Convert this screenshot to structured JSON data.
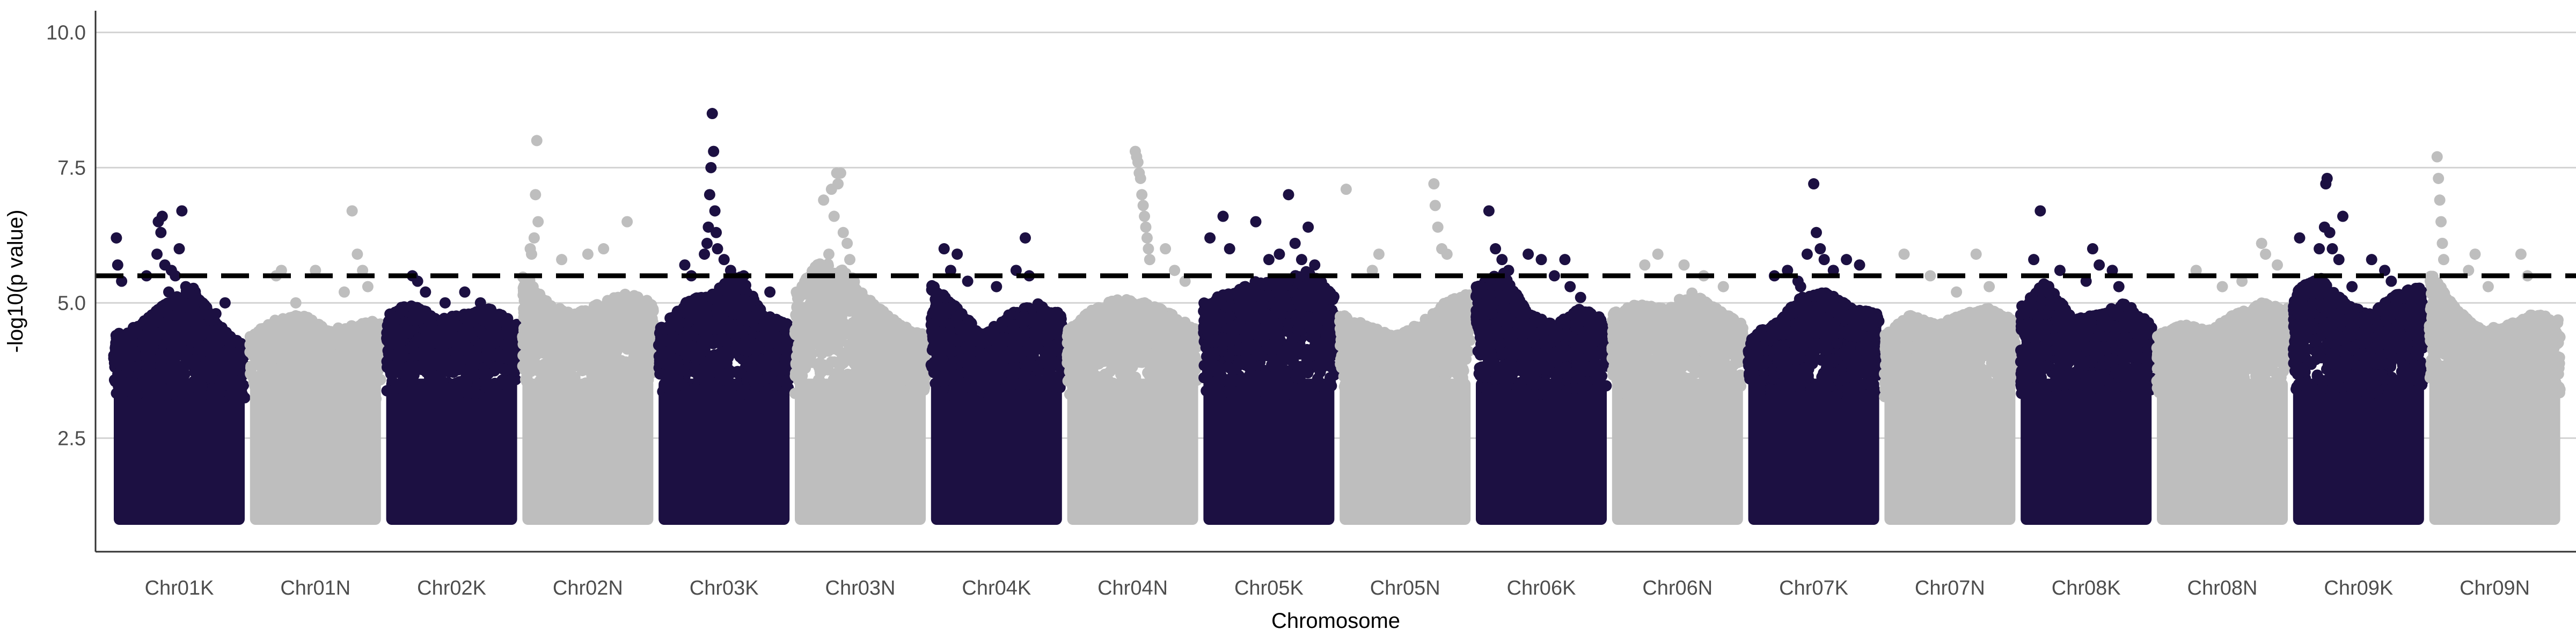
{
  "chart_data": {
    "type": "scatter",
    "title": "",
    "xlabel": "Chromosome",
    "ylabel": "-log10(p value)",
    "ylim": [
      0.4,
      10.4
    ],
    "y_ticks": [
      2.5,
      5.0,
      7.5,
      10.0
    ],
    "y_tick_labels": [
      "2.5",
      "5.0",
      "7.5",
      "10.0"
    ],
    "grid": "horizontal major lines at y ticks",
    "legend": "none",
    "threshold": 5.5,
    "colors": {
      "odd_chromosome": "#1c1042",
      "even_chromosome": "#bebebe",
      "threshold_line": "#000000",
      "grid": "#d3d3d3"
    },
    "point_floor": 1.0,
    "chromosomes": [
      {
        "name": "Chr01K",
        "color": "#1c1042",
        "envelope": [
          4.4,
          4.6,
          5.0,
          5.3,
          4.6,
          4.2
        ],
        "top_points": [
          [
            0.02,
            6.2
          ],
          [
            0.03,
            5.7
          ],
          [
            0.06,
            5.4
          ],
          [
            0.25,
            5.5
          ],
          [
            0.33,
            5.9
          ],
          [
            0.34,
            6.5
          ],
          [
            0.36,
            6.3
          ],
          [
            0.37,
            6.6
          ],
          [
            0.39,
            5.7
          ],
          [
            0.42,
            5.2
          ],
          [
            0.44,
            5.6
          ],
          [
            0.47,
            5.5
          ],
          [
            0.5,
            6.0
          ],
          [
            0.52,
            6.7
          ],
          [
            0.55,
            5.3
          ],
          [
            0.6,
            5.0
          ],
          [
            0.78,
            4.8
          ],
          [
            0.85,
            5.0
          ]
        ]
      },
      {
        "name": "Chr01N",
        "color": "#bebebe",
        "envelope": [
          4.4,
          4.7,
          4.8,
          4.5,
          4.6,
          4.7
        ],
        "top_points": [
          [
            0.2,
            5.5
          ],
          [
            0.24,
            5.6
          ],
          [
            0.35,
            5.0
          ],
          [
            0.5,
            5.6
          ],
          [
            0.72,
            5.2
          ],
          [
            0.78,
            6.7
          ],
          [
            0.82,
            5.9
          ],
          [
            0.86,
            5.6
          ],
          [
            0.9,
            5.3
          ]
        ]
      },
      {
        "name": "Chr02K",
        "color": "#1c1042",
        "envelope": [
          4.8,
          5.0,
          4.7,
          4.8,
          4.9,
          4.6
        ],
        "top_points": [
          [
            0.2,
            5.5
          ],
          [
            0.24,
            5.4
          ],
          [
            0.3,
            5.2
          ],
          [
            0.45,
            5.0
          ],
          [
            0.6,
            5.2
          ],
          [
            0.72,
            5.0
          ]
        ]
      },
      {
        "name": "Chr02N",
        "color": "#bebebe",
        "envelope": [
          5.6,
          5.0,
          4.8,
          5.0,
          5.2,
          5.0
        ],
        "top_points": [
          [
            0.06,
            6.0
          ],
          [
            0.07,
            5.9
          ],
          [
            0.09,
            6.2
          ],
          [
            0.1,
            7.0
          ],
          [
            0.11,
            8.0
          ],
          [
            0.12,
            6.5
          ],
          [
            0.3,
            5.8
          ],
          [
            0.5,
            5.9
          ],
          [
            0.62,
            6.0
          ],
          [
            0.8,
            6.5
          ]
        ]
      },
      {
        "name": "Chr03K",
        "color": "#1c1042",
        "envelope": [
          4.5,
          5.0,
          5.2,
          5.6,
          4.8,
          4.6
        ],
        "top_points": [
          [
            0.2,
            5.7
          ],
          [
            0.25,
            5.5
          ],
          [
            0.35,
            5.9
          ],
          [
            0.37,
            6.1
          ],
          [
            0.38,
            6.4
          ],
          [
            0.39,
            7.0
          ],
          [
            0.4,
            7.5
          ],
          [
            0.41,
            8.5
          ],
          [
            0.42,
            7.8
          ],
          [
            0.43,
            6.7
          ],
          [
            0.44,
            6.3
          ],
          [
            0.45,
            6.0
          ],
          [
            0.5,
            5.8
          ],
          [
            0.55,
            5.6
          ],
          [
            0.65,
            5.5
          ],
          [
            0.85,
            5.2
          ]
        ]
      },
      {
        "name": "Chr03N",
        "color": "#bebebe",
        "envelope": [
          5.2,
          5.8,
          5.6,
          5.0,
          4.6,
          4.4
        ],
        "top_points": [
          [
            0.22,
            6.9
          ],
          [
            0.28,
            7.1
          ],
          [
            0.3,
            6.6
          ],
          [
            0.32,
            7.4
          ],
          [
            0.33,
            7.2
          ],
          [
            0.35,
            7.4
          ],
          [
            0.37,
            6.3
          ],
          [
            0.4,
            6.1
          ],
          [
            0.26,
            5.9
          ],
          [
            0.42,
            5.8
          ]
        ]
      },
      {
        "name": "Chr04K",
        "color": "#1c1042",
        "envelope": [
          5.4,
          4.9,
          4.4,
          4.8,
          5.0,
          4.8
        ],
        "top_points": [
          [
            0.1,
            6.0
          ],
          [
            0.15,
            5.6
          ],
          [
            0.2,
            5.9
          ],
          [
            0.28,
            5.4
          ],
          [
            0.5,
            5.3
          ],
          [
            0.65,
            5.6
          ],
          [
            0.72,
            6.2
          ],
          [
            0.75,
            5.5
          ]
        ]
      },
      {
        "name": "Chr04N",
        "color": "#bebebe",
        "envelope": [
          4.5,
          4.9,
          5.1,
          5.0,
          4.8,
          4.5
        ],
        "top_points": [
          [
            0.52,
            7.8
          ],
          [
            0.53,
            7.7
          ],
          [
            0.54,
            7.6
          ],
          [
            0.55,
            7.4
          ],
          [
            0.56,
            7.3
          ],
          [
            0.57,
            7.0
          ],
          [
            0.58,
            6.8
          ],
          [
            0.59,
            6.6
          ],
          [
            0.6,
            6.4
          ],
          [
            0.61,
            6.2
          ],
          [
            0.62,
            6.0
          ],
          [
            0.63,
            5.8
          ],
          [
            0.75,
            6.0
          ],
          [
            0.82,
            5.6
          ],
          [
            0.9,
            5.4
          ]
        ]
      },
      {
        "name": "Chr05K",
        "color": "#1c1042",
        "envelope": [
          5.0,
          5.2,
          5.4,
          5.4,
          5.6,
          5.2
        ],
        "top_points": [
          [
            0.05,
            6.2
          ],
          [
            0.15,
            6.6
          ],
          [
            0.2,
            6.0
          ],
          [
            0.4,
            6.5
          ],
          [
            0.5,
            5.8
          ],
          [
            0.58,
            5.9
          ],
          [
            0.65,
            7.0
          ],
          [
            0.7,
            6.1
          ],
          [
            0.75,
            5.8
          ],
          [
            0.8,
            6.4
          ],
          [
            0.85,
            5.7
          ]
        ]
      },
      {
        "name": "Chr05N",
        "color": "#bebebe",
        "envelope": [
          4.8,
          4.6,
          4.4,
          4.6,
          5.0,
          5.2
        ],
        "top_points": [
          [
            0.05,
            7.1
          ],
          [
            0.25,
            5.6
          ],
          [
            0.3,
            5.9
          ],
          [
            0.72,
            7.2
          ],
          [
            0.73,
            6.8
          ],
          [
            0.75,
            6.4
          ],
          [
            0.78,
            6.0
          ],
          [
            0.82,
            5.9
          ]
        ]
      },
      {
        "name": "Chr06K",
        "color": "#1c1042",
        "envelope": [
          5.3,
          5.6,
          4.8,
          4.6,
          4.9,
          4.7
        ],
        "top_points": [
          [
            0.1,
            6.7
          ],
          [
            0.15,
            6.0
          ],
          [
            0.2,
            5.8
          ],
          [
            0.25,
            5.6
          ],
          [
            0.4,
            5.9
          ],
          [
            0.5,
            5.8
          ],
          [
            0.6,
            5.5
          ],
          [
            0.68,
            5.8
          ],
          [
            0.72,
            5.3
          ],
          [
            0.8,
            5.1
          ]
        ]
      },
      {
        "name": "Chr06N",
        "color": "#bebebe",
        "envelope": [
          4.8,
          5.0,
          4.9,
          5.2,
          4.9,
          4.6
        ],
        "top_points": [
          [
            0.25,
            5.7
          ],
          [
            0.35,
            5.9
          ],
          [
            0.55,
            5.7
          ],
          [
            0.7,
            5.5
          ],
          [
            0.85,
            5.3
          ]
        ]
      },
      {
        "name": "Chr07K",
        "color": "#1c1042",
        "envelope": [
          4.4,
          4.6,
          5.1,
          5.2,
          4.9,
          4.8
        ],
        "top_points": [
          [
            0.2,
            5.5
          ],
          [
            0.3,
            5.6
          ],
          [
            0.38,
            5.4
          ],
          [
            0.4,
            5.3
          ],
          [
            0.45,
            5.9
          ],
          [
            0.5,
            7.2
          ],
          [
            0.52,
            6.3
          ],
          [
            0.55,
            6.0
          ],
          [
            0.58,
            5.8
          ],
          [
            0.65,
            5.6
          ],
          [
            0.75,
            5.8
          ],
          [
            0.85,
            5.7
          ]
        ]
      },
      {
        "name": "Chr07N",
        "color": "#bebebe",
        "envelope": [
          4.4,
          4.8,
          4.6,
          4.8,
          4.9,
          4.7
        ],
        "top_points": [
          [
            0.15,
            5.9
          ],
          [
            0.35,
            5.5
          ],
          [
            0.55,
            5.2
          ],
          [
            0.7,
            5.9
          ],
          [
            0.8,
            5.3
          ]
        ]
      },
      {
        "name": "Chr08K",
        "color": "#1c1042",
        "envelope": [
          5.0,
          5.4,
          4.7,
          4.8,
          5.0,
          4.6
        ],
        "top_points": [
          [
            0.1,
            5.8
          ],
          [
            0.15,
            6.7
          ],
          [
            0.3,
            5.6
          ],
          [
            0.5,
            5.4
          ],
          [
            0.55,
            6.0
          ],
          [
            0.6,
            5.7
          ],
          [
            0.7,
            5.6
          ],
          [
            0.75,
            5.3
          ]
        ]
      },
      {
        "name": "Chr08N",
        "color": "#bebebe",
        "envelope": [
          4.4,
          4.6,
          4.5,
          4.8,
          5.0,
          4.9
        ],
        "top_points": [
          [
            0.3,
            5.6
          ],
          [
            0.5,
            5.3
          ],
          [
            0.65,
            5.4
          ],
          [
            0.8,
            6.1
          ],
          [
            0.83,
            5.9
          ],
          [
            0.92,
            5.7
          ]
        ]
      },
      {
        "name": "Chr09K",
        "color": "#1c1042",
        "envelope": [
          5.2,
          5.5,
          5.0,
          4.8,
          5.2,
          5.3
        ],
        "top_points": [
          [
            0.05,
            6.2
          ],
          [
            0.2,
            6.0
          ],
          [
            0.24,
            6.4
          ],
          [
            0.25,
            7.2
          ],
          [
            0.26,
            7.3
          ],
          [
            0.28,
            6.3
          ],
          [
            0.3,
            6.0
          ],
          [
            0.35,
            5.8
          ],
          [
            0.38,
            6.6
          ],
          [
            0.45,
            5.3
          ],
          [
            0.6,
            5.8
          ],
          [
            0.7,
            5.6
          ],
          [
            0.75,
            5.4
          ]
        ]
      },
      {
        "name": "Chr09N",
        "color": "#bebebe",
        "envelope": [
          5.6,
          4.9,
          4.5,
          4.6,
          4.8,
          4.7
        ],
        "top_points": [
          [
            0.06,
            7.7
          ],
          [
            0.07,
            7.3
          ],
          [
            0.08,
            6.9
          ],
          [
            0.09,
            6.5
          ],
          [
            0.1,
            6.1
          ],
          [
            0.11,
            5.8
          ],
          [
            0.3,
            5.6
          ],
          [
            0.35,
            5.9
          ],
          [
            0.45,
            5.3
          ],
          [
            0.7,
            5.9
          ],
          [
            0.75,
            5.5
          ]
        ]
      }
    ]
  }
}
